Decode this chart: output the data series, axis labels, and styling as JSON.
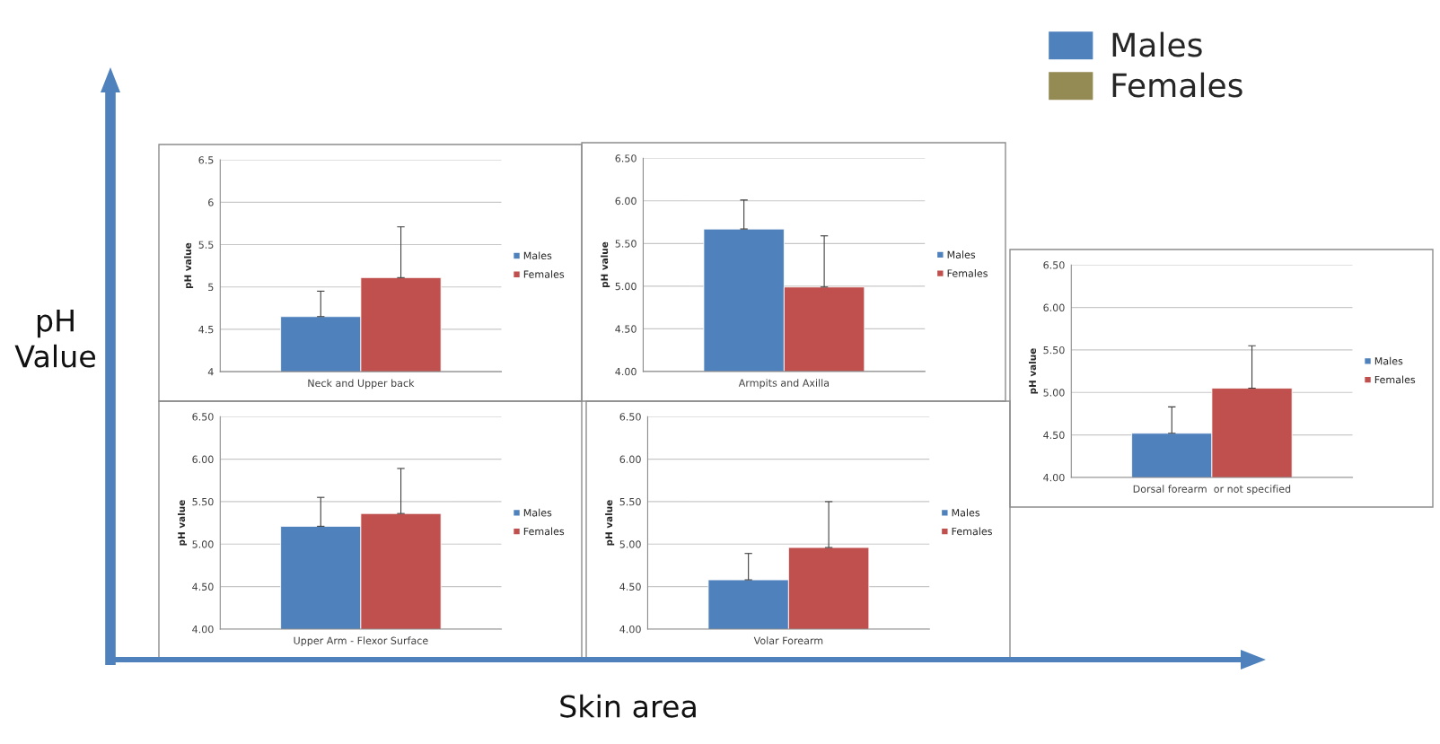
{
  "chart_data": [
    {
      "type": "bar",
      "categories": [
        "Neck and Upper back"
      ],
      "ylabel": "pH value",
      "ylim": [
        4,
        6.5
      ],
      "yticks": [
        4,
        4.5,
        5,
        5.5,
        6,
        6.5
      ],
      "grid": "y",
      "legend": "right",
      "series": [
        {
          "name": "Males",
          "color": "#4f81bd",
          "values": [
            4.65
          ],
          "errors": [
            [
              4.65,
              4.95
            ]
          ]
        },
        {
          "name": "Females",
          "color": "#c0504d",
          "values": [
            5.11
          ],
          "errors": [
            [
              5.11,
              5.71
            ]
          ]
        }
      ]
    },
    {
      "type": "bar",
      "categories": [
        "Armpits and Axilla"
      ],
      "ylabel": "pH value",
      "ylim": [
        4,
        6.5
      ],
      "yticks": [
        {
          "value": 4,
          "label": "4.00"
        },
        {
          "value": 4.5,
          "label": "4.50"
        },
        {
          "value": 5,
          "label": "5.00"
        },
        {
          "value": 5.5,
          "label": "5.50"
        },
        {
          "value": 6,
          "label": "6.00"
        },
        {
          "value": 6.5,
          "label": "6.50"
        }
      ],
      "grid": "y",
      "legend": "right",
      "series": [
        {
          "name": "Males",
          "color": "#4f81bd",
          "values": [
            5.67
          ],
          "errors": [
            [
              5.67,
              6.01
            ]
          ]
        },
        {
          "name": "Females",
          "color": "#c0504d",
          "values": [
            4.99
          ],
          "errors": [
            [
              4.99,
              5.59
            ]
          ]
        }
      ]
    },
    {
      "type": "bar",
      "categories": [
        "Dorsal forearm  or not specified"
      ],
      "ylabel": "pH value",
      "ylim": [
        4,
        6.5
      ],
      "yticks": [
        {
          "value": 4,
          "label": "4.00"
        },
        {
          "value": 4.5,
          "label": "4.50"
        },
        {
          "value": 5,
          "label": "5.00"
        },
        {
          "value": 5.5,
          "label": "5.50"
        },
        {
          "value": 6,
          "label": "6.00"
        },
        {
          "value": 6.5,
          "label": "6.50"
        }
      ],
      "grid": "y",
      "legend": "right",
      "series": [
        {
          "name": "Males",
          "color": "#4f81bd",
          "values": [
            4.52
          ],
          "errors": [
            [
              4.52,
              4.83
            ]
          ]
        },
        {
          "name": "Females",
          "color": "#c0504d",
          "values": [
            5.05
          ],
          "errors": [
            [
              5.05,
              5.55
            ]
          ]
        }
      ]
    },
    {
      "type": "bar",
      "categories": [
        "Upper Arm - Flexor Surface"
      ],
      "ylabel": "pH value",
      "ylim": [
        4,
        6.5
      ],
      "yticks": [
        {
          "value": 4,
          "label": "4.00"
        },
        {
          "value": 4.5,
          "label": "4.50"
        },
        {
          "value": 5,
          "label": "5.00"
        },
        {
          "value": 5.5,
          "label": "5.50"
        },
        {
          "value": 6,
          "label": "6.00"
        },
        {
          "value": 6.5,
          "label": "6.50"
        }
      ],
      "grid": "y",
      "legend": "right",
      "series": [
        {
          "name": "Males",
          "color": "#4f81bd",
          "values": [
            5.21
          ],
          "errors": [
            [
              5.21,
              5.55
            ]
          ]
        },
        {
          "name": "Females",
          "color": "#c0504d",
          "values": [
            5.36
          ],
          "errors": [
            [
              5.36,
              5.89
            ]
          ]
        }
      ]
    },
    {
      "type": "bar",
      "categories": [
        "Volar Forearm"
      ],
      "ylabel": "pH value",
      "ylim": [
        4,
        6.5
      ],
      "yticks": [
        {
          "value": 4,
          "label": "4.00"
        },
        {
          "value": 4.5,
          "label": "4.50"
        },
        {
          "value": 5,
          "label": "5.00"
        },
        {
          "value": 5.5,
          "label": "5.50"
        },
        {
          "value": 6,
          "label": "6.00"
        },
        {
          "value": 6.5,
          "label": "6.50"
        }
      ],
      "grid": "y",
      "legend": "right",
      "series": [
        {
          "name": "Males",
          "color": "#4f81bd",
          "values": [
            4.58
          ],
          "errors": [
            [
              4.58,
              4.89
            ]
          ]
        },
        {
          "name": "Females",
          "color": "#c0504d",
          "values": [
            4.96
          ],
          "errors": [
            [
              4.96,
              5.5
            ]
          ]
        }
      ]
    },
    {
      "type": "other",
      "xlabel": "Skin area",
      "ylabel": "pH Value",
      "legend": "top right",
      "series": [
        {
          "name": "Males",
          "color": "#4f81bd"
        },
        {
          "name": "Females",
          "color": "#948a54"
        }
      ]
    }
  ]
}
